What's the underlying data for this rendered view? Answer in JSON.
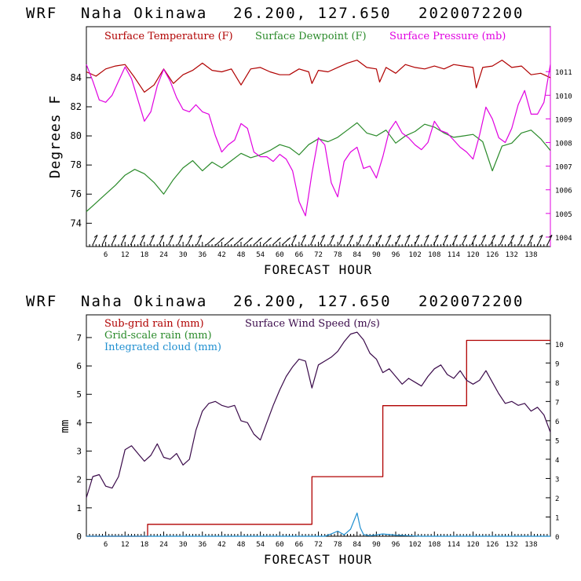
{
  "chart_data": [
    {
      "type": "line",
      "header": {
        "model": "WRF",
        "location": "Naha Okinawa",
        "coords": "26.200, 127.650",
        "init": "2020072200"
      },
      "legend": [
        {
          "name": "Surface Temperature (F)",
          "color": "#b00000"
        },
        {
          "name": "Surface Dewpoint (F)",
          "color": "#2a8a2a"
        },
        {
          "name": "Surface Pressure (mb)",
          "color": "#e000e0"
        }
      ],
      "xlabel": "FORECAST HOUR",
      "ylabel": "Degrees F",
      "xlim": [
        0,
        144
      ],
      "ylim": [
        72.4,
        87.5
      ],
      "y2lim": [
        1003.6,
        1012.9
      ],
      "x_ticks": [
        "6",
        "12",
        "18",
        "24",
        "30",
        "36",
        "42",
        "48",
        "54",
        "60",
        "66",
        "72",
        "78",
        "84",
        "90",
        "96",
        "102",
        "108",
        "114",
        "120",
        "126",
        "132",
        "138"
      ],
      "y_ticks": [
        "74",
        "76",
        "78",
        "80",
        "82",
        "84"
      ],
      "y2_ticks": [
        "1004",
        "1005",
        "1006",
        "1007",
        "1008",
        "1009",
        "1010",
        "1011"
      ],
      "series": [
        {
          "name": "Surface Temperature (F)",
          "x": [
            0,
            3,
            6,
            9,
            12,
            15,
            18,
            21,
            24,
            27,
            30,
            33,
            36,
            39,
            42,
            45,
            48,
            51,
            54,
            57,
            60,
            63,
            66,
            69,
            70,
            72,
            75,
            78,
            81,
            84,
            87,
            90,
            91,
            93,
            96,
            99,
            102,
            105,
            108,
            111,
            114,
            117,
            120,
            121,
            123,
            126,
            129,
            132,
            135,
            138,
            141,
            144
          ],
          "y": [
            84.4,
            84.1,
            84.6,
            84.8,
            84.9,
            84.0,
            83.0,
            83.5,
            84.6,
            83.6,
            84.2,
            84.5,
            85.0,
            84.5,
            84.4,
            84.6,
            83.5,
            84.6,
            84.7,
            84.4,
            84.2,
            84.2,
            84.6,
            84.4,
            83.6,
            84.5,
            84.4,
            84.7,
            85.0,
            85.2,
            84.7,
            84.6,
            83.7,
            84.7,
            84.3,
            84.9,
            84.7,
            84.6,
            84.8,
            84.6,
            84.9,
            84.8,
            84.7,
            83.3,
            84.7,
            84.8,
            85.2,
            84.7,
            84.8,
            84.2,
            84.3,
            84.0
          ]
        },
        {
          "name": "Surface Dewpoint (F)",
          "x": [
            0,
            3,
            6,
            9,
            12,
            15,
            18,
            21,
            24,
            27,
            30,
            33,
            36,
            39,
            42,
            45,
            48,
            51,
            54,
            57,
            60,
            63,
            66,
            69,
            72,
            75,
            78,
            81,
            84,
            87,
            90,
            93,
            96,
            99,
            102,
            105,
            108,
            111,
            114,
            117,
            120,
            123,
            126,
            129,
            132,
            135,
            138,
            141,
            144
          ],
          "y": [
            74.8,
            75.4,
            76.0,
            76.6,
            77.3,
            77.7,
            77.4,
            76.8,
            76.0,
            77.0,
            77.8,
            78.3,
            77.6,
            78.2,
            77.8,
            78.3,
            78.8,
            78.5,
            78.7,
            79.0,
            79.4,
            79.2,
            78.7,
            79.4,
            79.8,
            79.6,
            79.9,
            80.4,
            80.9,
            80.2,
            80.0,
            80.4,
            79.5,
            80.0,
            80.3,
            80.8,
            80.6,
            80.2,
            79.9,
            80.0,
            80.1,
            79.6,
            77.6,
            79.3,
            79.5,
            80.2,
            80.4,
            79.8,
            79.0
          ]
        },
        {
          "name": "Surface Pressure (mb)",
          "x": [
            0,
            2,
            4,
            6,
            8,
            10,
            12,
            14,
            16,
            18,
            20,
            22,
            24,
            26,
            28,
            30,
            32,
            34,
            36,
            38,
            40,
            42,
            44,
            46,
            48,
            50,
            52,
            54,
            56,
            58,
            60,
            62,
            64,
            66,
            68,
            70,
            72,
            74,
            76,
            78,
            80,
            82,
            84,
            86,
            88,
            90,
            92,
            94,
            96,
            98,
            100,
            102,
            104,
            106,
            108,
            110,
            112,
            114,
            116,
            118,
            120,
            122,
            124,
            126,
            128,
            130,
            132,
            134,
            136,
            138,
            140,
            142,
            144
          ],
          "y": [
            1011.3,
            1010.6,
            1009.8,
            1009.7,
            1010.0,
            1010.6,
            1011.2,
            1010.7,
            1009.8,
            1008.9,
            1009.3,
            1010.4,
            1011.1,
            1010.6,
            1009.9,
            1009.4,
            1009.3,
            1009.6,
            1009.3,
            1009.2,
            1008.3,
            1007.6,
            1007.9,
            1008.1,
            1008.8,
            1008.6,
            1007.6,
            1007.4,
            1007.4,
            1007.2,
            1007.5,
            1007.3,
            1006.8,
            1005.5,
            1004.9,
            1006.7,
            1008.2,
            1007.9,
            1006.3,
            1005.7,
            1007.2,
            1007.6,
            1007.8,
            1006.9,
            1007.0,
            1006.5,
            1007.4,
            1008.5,
            1008.9,
            1008.4,
            1008.2,
            1007.9,
            1007.7,
            1008.0,
            1008.9,
            1008.5,
            1008.4,
            1008.1,
            1007.8,
            1007.6,
            1007.3,
            1008.3,
            1009.5,
            1009.0,
            1008.2,
            1008.0,
            1008.6,
            1009.6,
            1010.2,
            1009.2,
            1009.2,
            1009.7,
            1011.3
          ]
        }
      ]
    },
    {
      "type": "line",
      "header": {
        "model": "WRF",
        "location": "Naha Okinawa",
        "coords": "26.200, 127.650",
        "init": "2020072200"
      },
      "legend": [
        {
          "name": "Sub-grid rain (mm)",
          "color": "#b00000"
        },
        {
          "name": "Grid-scale rain (mm)",
          "color": "#2a8a2a"
        },
        {
          "name": "Integrated cloud (mm)",
          "color": "#1f8fd0"
        },
        {
          "name": "Surface Wind Speed (m/s)",
          "color": "#3a0a4a"
        }
      ],
      "xlabel": "FORECAST HOUR",
      "ylabel": "mm",
      "xlim": [
        0,
        144
      ],
      "ylim": [
        0,
        7.8
      ],
      "y2lim": [
        0,
        11.5
      ],
      "x_ticks": [
        "6",
        "12",
        "18",
        "24",
        "30",
        "36",
        "42",
        "48",
        "54",
        "60",
        "66",
        "72",
        "78",
        "84",
        "90",
        "96",
        "102",
        "108",
        "114",
        "120",
        "126",
        "132",
        "138"
      ],
      "y_ticks": [
        "0",
        "1",
        "2",
        "3",
        "4",
        "5",
        "6",
        "7"
      ],
      "y2_ticks": [
        "0",
        "1",
        "2",
        "3",
        "4",
        "5",
        "6",
        "7",
        "8",
        "9",
        "10"
      ],
      "series": [
        {
          "name": "Sub-grid rain (mm)",
          "x": [
            0,
            19,
            19,
            70,
            70,
            92,
            92,
            118,
            118,
            144
          ],
          "y": [
            0,
            0,
            0.42,
            0.42,
            2.1,
            2.1,
            4.6,
            4.6,
            6.9,
            6.9
          ]
        },
        {
          "name": "Integrated cloud (mm)",
          "x": [
            0,
            74,
            76,
            78,
            80,
            82,
            84,
            85,
            86,
            88,
            92,
            96,
            100,
            104,
            144
          ],
          "y": [
            0,
            0,
            0.08,
            0.18,
            0.05,
            0.25,
            0.82,
            0.3,
            0.06,
            0.02,
            0.08,
            0.04,
            0.02,
            0,
            0
          ]
        },
        {
          "name": "Surface Wind Speed (m/s)",
          "x": [
            0,
            2,
            4,
            6,
            8,
            10,
            12,
            14,
            16,
            18,
            20,
            22,
            24,
            26,
            28,
            30,
            32,
            34,
            36,
            38,
            40,
            42,
            44,
            46,
            48,
            50,
            52,
            54,
            56,
            58,
            60,
            62,
            64,
            66,
            68,
            70,
            72,
            74,
            76,
            78,
            80,
            82,
            84,
            86,
            88,
            90,
            92,
            94,
            96,
            98,
            100,
            102,
            104,
            106,
            108,
            110,
            112,
            114,
            116,
            118,
            120,
            122,
            124,
            126,
            128,
            130,
            132,
            134,
            136,
            138,
            140,
            142,
            144
          ],
          "y": [
            2.0,
            3.1,
            3.2,
            2.6,
            2.5,
            3.1,
            4.5,
            4.7,
            4.3,
            3.9,
            4.2,
            4.8,
            4.1,
            4.0,
            4.3,
            3.7,
            4.0,
            5.5,
            6.5,
            6.9,
            7.0,
            6.8,
            6.7,
            6.8,
            6.0,
            5.9,
            5.3,
            5.0,
            5.9,
            6.8,
            7.6,
            8.3,
            8.8,
            9.2,
            9.1,
            7.7,
            8.9,
            9.1,
            9.3,
            9.6,
            10.1,
            10.5,
            10.6,
            10.2,
            9.5,
            9.2,
            8.5,
            8.7,
            8.3,
            7.9,
            8.2,
            8.0,
            7.8,
            8.3,
            8.7,
            8.9,
            8.4,
            8.2,
            8.6,
            8.1,
            7.9,
            8.1,
            8.6,
            8.0,
            7.4,
            6.9,
            7.0,
            6.8,
            6.9,
            6.5,
            6.7,
            6.3,
            5.4
          ]
        }
      ]
    }
  ]
}
